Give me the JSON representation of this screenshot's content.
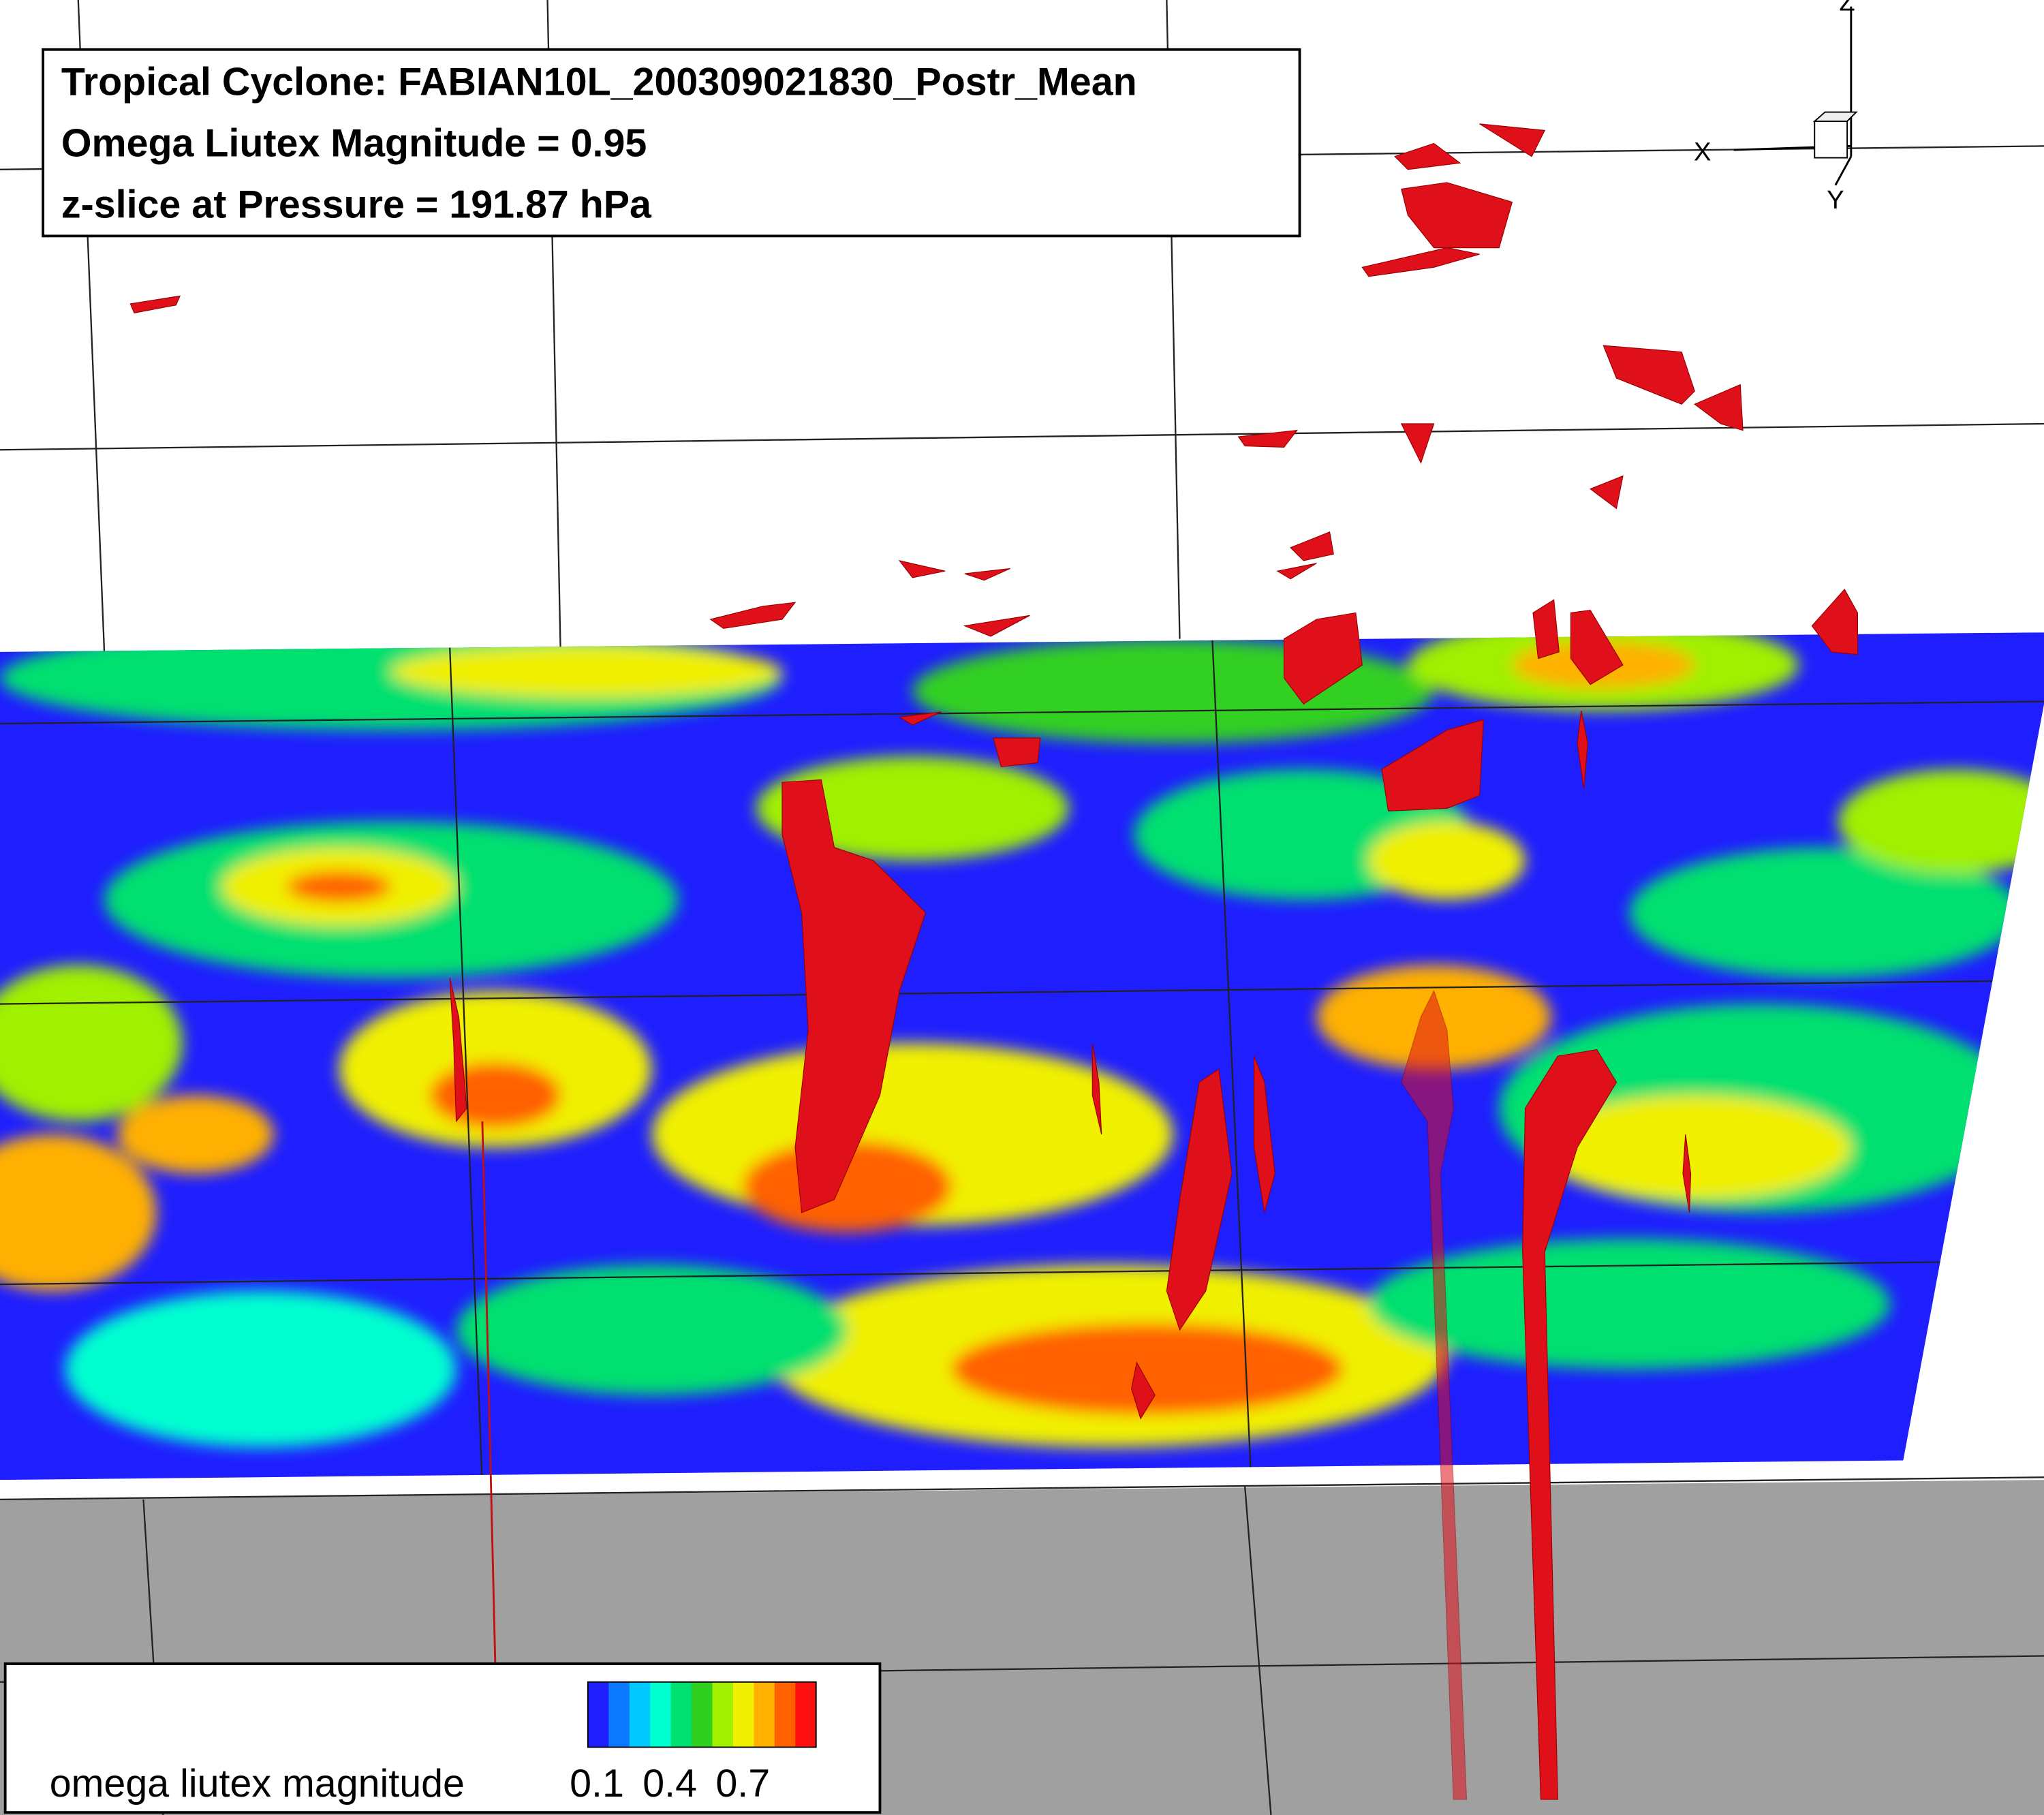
{
  "title_box": {
    "lines": [
      "Tropical Cyclone: FABIAN10L_200309021830_Postr_Mean",
      "Omega Liutex Magnitude = 0.95",
      "z-slice at Pressure = 191.87 hPa"
    ]
  },
  "axis_triad": {
    "x": "X",
    "y": "Y",
    "z": "Z"
  },
  "legend": {
    "label": "omega liutex magnitude",
    "ticks": [
      0.1,
      0.4,
      0.7
    ],
    "colors": [
      "#1e1eff",
      "#0a78ff",
      "#00c8ff",
      "#00ffd0",
      "#00e070",
      "#30d020",
      "#a0f000",
      "#f0f000",
      "#ffb000",
      "#ff6000",
      "#ff1010"
    ]
  }
}
